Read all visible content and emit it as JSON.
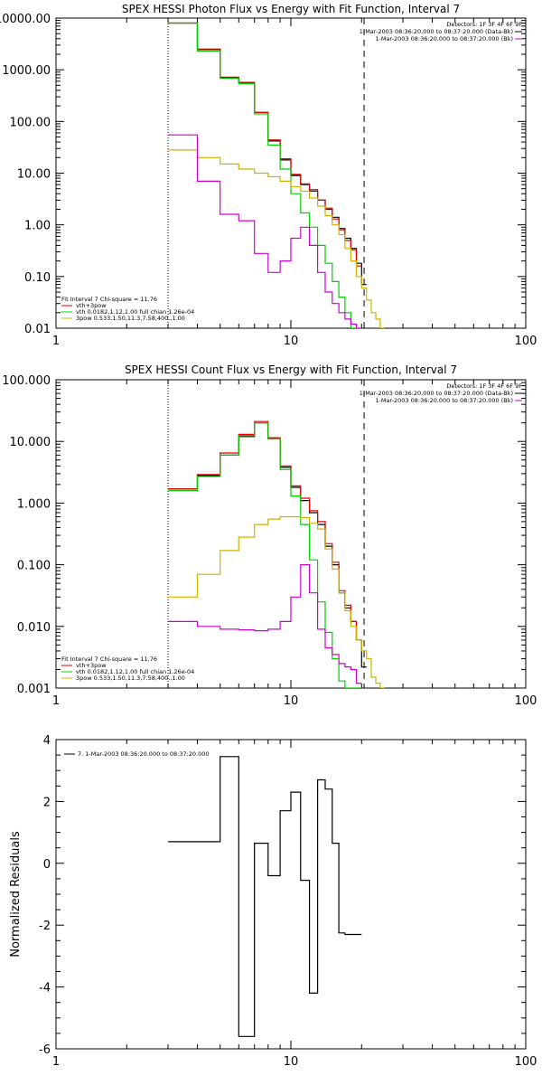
{
  "chart_data": [
    {
      "type": "line",
      "title": "SPEX HESSI Photon Flux vs Energy with Fit Function, Interval 7",
      "x_scale": "log",
      "y_scale": "log",
      "xlim": [
        1,
        100
      ],
      "ylim": [
        0.01,
        10000
      ],
      "x_ticks": [
        1,
        10,
        100
      ],
      "x_tick_labels": [
        "1",
        "10",
        "100"
      ],
      "y_ticks": [
        0.01,
        0.1,
        1,
        10,
        100,
        1000,
        10000
      ],
      "y_tick_labels": [
        "0.01",
        "0.10",
        "1.00",
        "10.00",
        "100.00",
        "1000.00",
        "10000.00"
      ],
      "vlines": [
        {
          "x": 3,
          "style": "dotted"
        },
        {
          "x": 20.5,
          "style": "dashed"
        }
      ],
      "header_lines": [
        "Detectors: 1F 3F 4F 6F 9F",
        "1-Mar-2003 08:36:20.000 to 08:37:20.000 (Data-Bk)",
        "1-Mar-2003 08:36:20.000 to 08:37:20.000 (Bk)"
      ],
      "header_colors": [
        "",
        "#000000",
        "#d000d0"
      ],
      "legend_title": "Fit Interval 7   Chi-square = 11.76",
      "legend": [
        {
          "label": "vth+3pow",
          "color": "#e00000"
        },
        {
          "label": "vth 0.0182,1.12,1.00  full chian 1.26e-04",
          "color": "#00d000"
        },
        {
          "label": "3pow 0.533,1.50,11.3,7.58,400.,1.00",
          "color": "#d0b000"
        }
      ],
      "series": [
        {
          "name": "Data-Bk",
          "color": "#000000",
          "edges": [
            3,
            4,
            5,
            6,
            7,
            8,
            9,
            10,
            11,
            12,
            13,
            14,
            15,
            16,
            17,
            18,
            19,
            20,
            21
          ],
          "values": [
            8000,
            2500,
            700,
            560,
            150,
            42,
            18,
            9,
            6,
            4.5,
            3,
            2,
            1.4,
            0.85,
            0.55,
            0.35,
            0.18,
            0.07
          ]
        },
        {
          "name": "vth+3pow",
          "color": "#e00000",
          "edges": [
            3,
            4,
            5,
            6,
            7,
            8,
            9,
            10,
            11,
            12,
            13,
            14,
            15,
            16,
            17,
            18,
            19,
            20
          ],
          "values": [
            8000,
            2450,
            720,
            570,
            150,
            44,
            19,
            9.5,
            6.2,
            4.8,
            3,
            2.1,
            1.3,
            0.8,
            0.5,
            0.33,
            0.16
          ]
        },
        {
          "name": "vth",
          "color": "#00d000",
          "edges": [
            3,
            4,
            5,
            6,
            7,
            8,
            9,
            10,
            11,
            12,
            13,
            14,
            15,
            16,
            17,
            18,
            19
          ],
          "values": [
            8000,
            2300,
            680,
            540,
            140,
            35,
            12,
            4,
            1.7,
            0.9,
            0.4,
            0.18,
            0.08,
            0.04,
            0.02,
            0.01
          ]
        },
        {
          "name": "3pow",
          "color": "#d0b000",
          "edges": [
            3,
            4,
            5,
            6,
            7,
            8,
            9,
            10,
            11,
            12,
            13,
            14,
            15,
            16,
            17,
            18,
            19,
            20,
            21,
            22,
            23,
            24,
            25
          ],
          "values": [
            28,
            20,
            15,
            12,
            10,
            8.5,
            7,
            5.5,
            4.5,
            3.3,
            2.3,
            1.5,
            1,
            0.65,
            0.35,
            0.2,
            0.1,
            0.06,
            0.035,
            0.02,
            0.015,
            0.01
          ]
        },
        {
          "name": "Bk",
          "color": "#d000d0",
          "edges": [
            3,
            4,
            5,
            6,
            7,
            8,
            9,
            10,
            11,
            12,
            13,
            14,
            15,
            16,
            17,
            18,
            19,
            20
          ],
          "values": [
            55,
            7,
            1.6,
            1.2,
            0.28,
            0.12,
            0.2,
            0.55,
            0.9,
            0.4,
            0.12,
            0.05,
            0.03,
            0.02,
            0.015,
            0.012,
            0.01
          ]
        }
      ]
    },
    {
      "type": "line",
      "title": "SPEX HESSI Count Flux vs Energy with Fit Function, Interval 7",
      "x_scale": "log",
      "y_scale": "log",
      "xlim": [
        1,
        100
      ],
      "ylim": [
        0.001,
        100
      ],
      "x_ticks": [
        1,
        10,
        100
      ],
      "x_tick_labels": [
        "1",
        "10",
        "100"
      ],
      "y_ticks": [
        0.001,
        0.01,
        0.1,
        1,
        10,
        100
      ],
      "y_tick_labels": [
        "0.001",
        "0.010",
        "0.100",
        "1.000",
        "10.000",
        "100.000"
      ],
      "vlines": [
        {
          "x": 3,
          "style": "dotted"
        },
        {
          "x": 20.5,
          "style": "dashed"
        }
      ],
      "header_lines": [
        "Detectors: 1F 3F 4F 6F 9F",
        "1-Mar-2003 08:36:20.000 to 08:37:20.000 (Data-Bk)",
        "1-Mar-2003 08:36:20.000 to 08:37:20.000 (Bk)"
      ],
      "header_colors": [
        "",
        "#000000",
        "#d000d0"
      ],
      "legend_title": "Fit Interval 7   Chi-square = 11.76",
      "legend": [
        {
          "label": "vth+3pow",
          "color": "#e00000"
        },
        {
          "label": "vth 0.0182,1.12,1.00  full chian 1.26e-04",
          "color": "#00d000"
        },
        {
          "label": "3pow 0.533,1.50,11.3,7.58,400.,1.00",
          "color": "#d0b000"
        }
      ],
      "series": [
        {
          "name": "Data-Bk",
          "color": "#000000",
          "edges": [
            3,
            4,
            5,
            6,
            7,
            8,
            9,
            10,
            11,
            12,
            13,
            14,
            15,
            16,
            17,
            18,
            19,
            20,
            21
          ],
          "values": [
            1.7,
            2.8,
            6,
            12,
            20,
            11,
            3.8,
            1.8,
            1.1,
            0.7,
            0.45,
            0.2,
            0.1,
            0.035,
            0.02,
            0.012,
            0.006,
            0.0022
          ]
        },
        {
          "name": "vth+3pow",
          "color": "#e00000",
          "edges": [
            3,
            4,
            5,
            6,
            7,
            8,
            9,
            10,
            11,
            12,
            13,
            14,
            15,
            16,
            17,
            18,
            19,
            20
          ],
          "values": [
            1.7,
            2.9,
            6.5,
            13,
            21,
            11.5,
            4,
            1.9,
            1.2,
            0.75,
            0.5,
            0.22,
            0.11,
            0.038,
            0.022,
            0.012,
            0.006
          ]
        },
        {
          "name": "vth",
          "color": "#00d000",
          "edges": [
            3,
            4,
            5,
            6,
            7,
            8,
            9,
            10,
            11,
            12,
            13,
            14,
            15,
            16,
            17,
            18,
            19,
            20
          ],
          "values": [
            1.6,
            2.7,
            6,
            12.5,
            20,
            11,
            3.5,
            1.3,
            0.45,
            0.12,
            0.025,
            0.008,
            0.003,
            0.0013,
            0.001,
            0.001,
            0.001
          ]
        },
        {
          "name": "3pow",
          "color": "#d0b000",
          "edges": [
            3,
            4,
            5,
            6,
            7,
            8,
            9,
            10,
            11,
            12,
            13,
            14,
            15,
            16,
            17,
            18,
            19,
            20,
            21,
            22,
            23,
            24,
            25
          ],
          "values": [
            0.03,
            0.07,
            0.17,
            0.28,
            0.45,
            0.55,
            0.6,
            0.6,
            0.58,
            0.47,
            0.38,
            0.18,
            0.085,
            0.035,
            0.018,
            0.01,
            0.006,
            0.004,
            0.003,
            0.0015,
            0.0012,
            0.001
          ]
        },
        {
          "name": "Bk",
          "color": "#d000d0",
          "edges": [
            3,
            4,
            5,
            6,
            7,
            8,
            9,
            10,
            11,
            12,
            13,
            14,
            15,
            16,
            17,
            18,
            19,
            20
          ],
          "values": [
            0.012,
            0.01,
            0.009,
            0.0088,
            0.0085,
            0.009,
            0.012,
            0.03,
            0.1,
            0.035,
            0.009,
            0.0045,
            0.0035,
            0.0025,
            0.0022,
            0.002,
            0.0012
          ]
        }
      ]
    },
    {
      "type": "line",
      "title": "",
      "x_scale": "log",
      "y_scale": "linear",
      "xlim": [
        1,
        100
      ],
      "ylim": [
        -6,
        4
      ],
      "x_ticks": [
        1,
        10,
        100
      ],
      "x_tick_labels": [
        "1",
        "10",
        "100"
      ],
      "y_ticks": [
        -6,
        -4,
        -2,
        0,
        2,
        4
      ],
      "y_tick_labels": [
        "-6",
        "-4",
        "-2",
        "0",
        "2",
        "4"
      ],
      "ylabel": "Normalized Residuals",
      "legend": [
        {
          "label": "7.  1-Mar-2003 08:36:20.000 to 08:37:20.000",
          "color": "#000000"
        }
      ],
      "series": [
        {
          "name": "7.  1-Mar-2003 08:36:20.000 to 08:37:20.000",
          "color": "#000000",
          "edges": [
            3,
            4,
            5,
            6,
            7,
            8,
            9,
            10,
            11,
            12,
            13,
            14,
            15,
            16,
            17,
            18,
            19,
            20
          ],
          "values": [
            0.7,
            0.7,
            3.45,
            -5.6,
            0.65,
            -0.4,
            1.7,
            2.3,
            -0.55,
            -4.2,
            2.7,
            2.4,
            0.65,
            -2.25,
            -2.3,
            -2.3,
            -2.3
          ]
        }
      ]
    }
  ]
}
